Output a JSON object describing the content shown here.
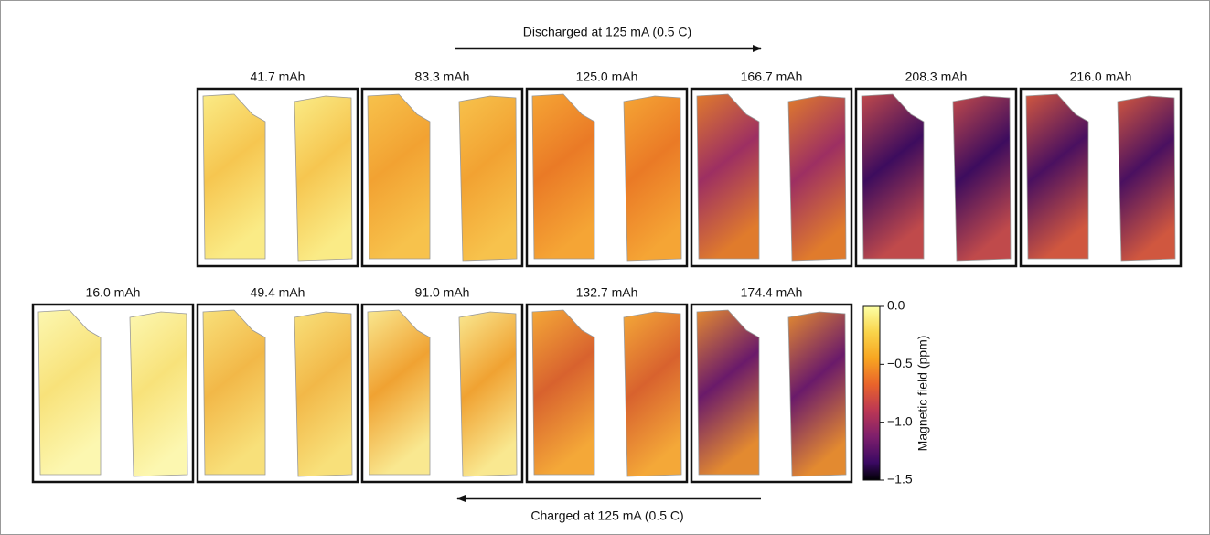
{
  "discharge_label": "Discharged at 125 mA (0.5 C)",
  "charge_label": "Charged at 125 mA (0.5 C)",
  "discharge_panels": [
    "41.7 mAh",
    "83.3 mAh",
    "125.0 mAh",
    "166.7 mAh",
    "208.3 mAh",
    "216.0 mAh"
  ],
  "charge_panels": [
    "16.0 mAh",
    "49.4 mAh",
    "91.0 mAh",
    "132.7 mAh",
    "174.4 mAh"
  ],
  "colorbar": {
    "label": "Magnetic field (ppm)",
    "ylim": [
      -1.5,
      0
    ],
    "ticks": [
      {
        "value": 0,
        "label": "0.0"
      },
      {
        "value": -0.5,
        "label": "−0.5"
      },
      {
        "value": -1,
        "label": "−1.0"
      },
      {
        "value": -1.5,
        "label": "−1.5"
      }
    ]
  }
}
